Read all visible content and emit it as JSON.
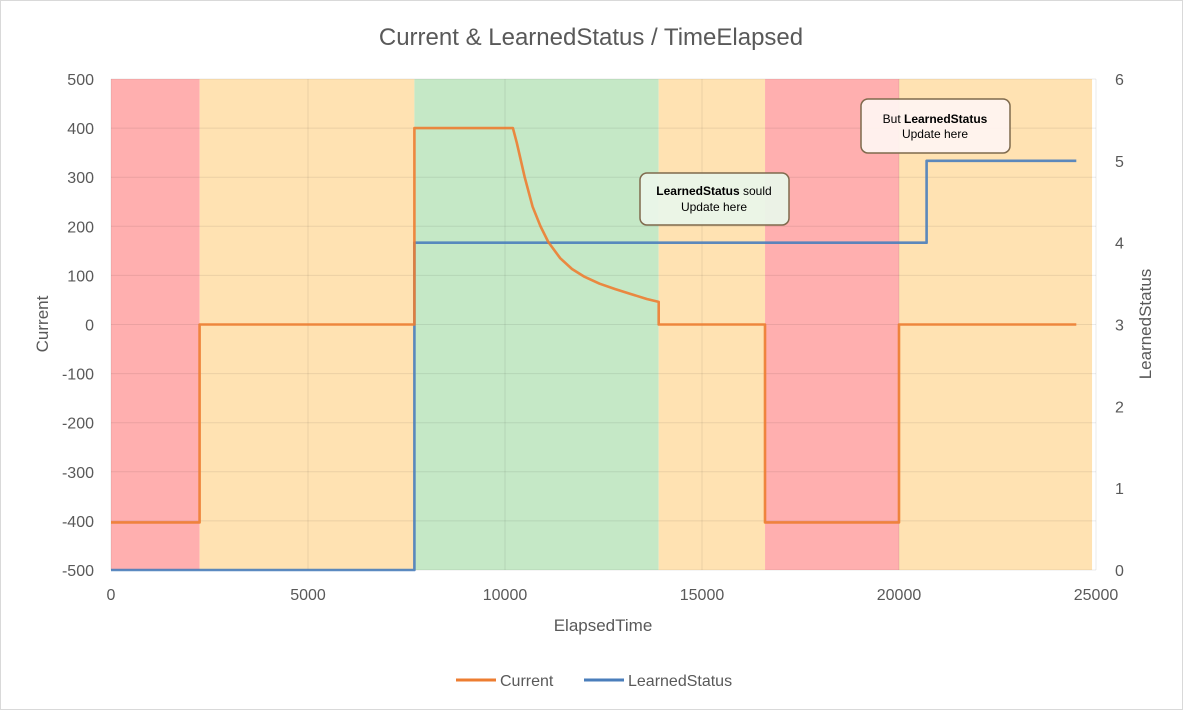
{
  "chart_data": {
    "type": "line",
    "title": "Current & LearnedStatus / TimeElapsed",
    "xlabel": "ElapsedTime",
    "ylabel": "Current",
    "y2label": "LearnedStatus",
    "xlim": [
      0,
      25000
    ],
    "ylim": [
      -500,
      500
    ],
    "y2lim": [
      0,
      6
    ],
    "x_ticks": [
      "0",
      "5000",
      "10000",
      "15000",
      "20000",
      "25000"
    ],
    "y_ticks": [
      "500",
      "400",
      "300",
      "200",
      "100",
      "0",
      "-100",
      "-200",
      "-300",
      "-400",
      "-500"
    ],
    "y2_ticks": [
      "6",
      "5",
      "4",
      "3",
      "2",
      "1",
      "0"
    ],
    "grid": true,
    "legend_position": "bottom",
    "background_bands": [
      {
        "x_start": 0,
        "x_end": 2250,
        "color": "#ffafaf"
      },
      {
        "x_start": 2250,
        "x_end": 7700,
        "color": "#ffe2b2"
      },
      {
        "x_start": 7700,
        "x_end": 13900,
        "color": "#c5e8c6"
      },
      {
        "x_start": 13900,
        "x_end": 16600,
        "color": "#ffe2b2"
      },
      {
        "x_start": 16600,
        "x_end": 20000,
        "color": "#ffafaf"
      },
      {
        "x_start": 20000,
        "x_end": 24900,
        "color": "#ffe2b2"
      }
    ],
    "series": [
      {
        "name": "Current",
        "axis": "left",
        "color": "#ed7d31",
        "points": [
          [
            0,
            -403
          ],
          [
            2250,
            -403
          ],
          [
            2250,
            0
          ],
          [
            7700,
            0
          ],
          [
            7700,
            400
          ],
          [
            10200,
            400
          ],
          [
            10300,
            370
          ],
          [
            10500,
            300
          ],
          [
            10700,
            240
          ],
          [
            10900,
            200
          ],
          [
            11100,
            168
          ],
          [
            11400,
            135
          ],
          [
            11700,
            113
          ],
          [
            12000,
            98
          ],
          [
            12400,
            83
          ],
          [
            12800,
            72
          ],
          [
            13200,
            62
          ],
          [
            13600,
            52
          ],
          [
            13900,
            46
          ],
          [
            13900,
            0
          ],
          [
            16600,
            0
          ],
          [
            16600,
            -403
          ],
          [
            20000,
            -403
          ],
          [
            20000,
            0
          ],
          [
            24500,
            0
          ]
        ]
      },
      {
        "name": "LearnedStatus",
        "axis": "right",
        "color": "#4a7ebb",
        "points": [
          [
            0,
            0
          ],
          [
            7700,
            0
          ],
          [
            7700,
            4
          ],
          [
            20700,
            4
          ],
          [
            20700,
            5
          ],
          [
            24500,
            5
          ]
        ]
      }
    ],
    "annotations": [
      {
        "bold": "LearnedStatus",
        "text": " sould",
        "line2": "Update here"
      },
      {
        "prefix": "But ",
        "bold": "LearnedStatus",
        "line2": "Update here"
      }
    ]
  }
}
